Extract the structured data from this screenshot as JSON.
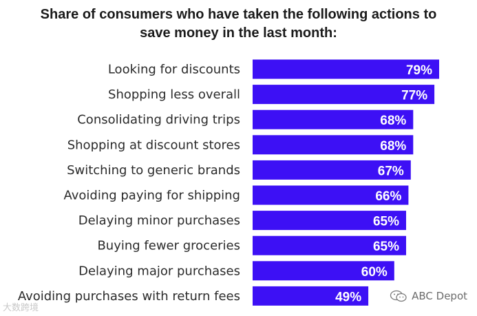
{
  "chart_data": {
    "type": "bar",
    "orientation": "horizontal",
    "title_lines": [
      "Share of consumers who have taken the following actions to",
      "save money in the last month:"
    ],
    "categories": [
      "Looking for discounts",
      "Shopping less overall",
      "Consolidating driving trips",
      "Shopping at discount stores",
      "Switching to generic brands",
      "Avoiding paying for shipping",
      "Delaying minor purchases",
      "Buying fewer groceries",
      "Delaying major purchases",
      "Avoiding purchases with return fees"
    ],
    "values": [
      79,
      77,
      68,
      68,
      67,
      66,
      65,
      65,
      60,
      49
    ],
    "value_labels": [
      "79%",
      "77%",
      "68%",
      "68%",
      "67%",
      "66%",
      "65%",
      "65%",
      "60%",
      "49%"
    ],
    "unit": "%",
    "xlim": [
      0,
      100
    ],
    "grid": false,
    "legend": "none",
    "bar_color": "#3d10f5"
  },
  "watermarks": {
    "left": "大数跨境",
    "right": "ABC Depot"
  }
}
